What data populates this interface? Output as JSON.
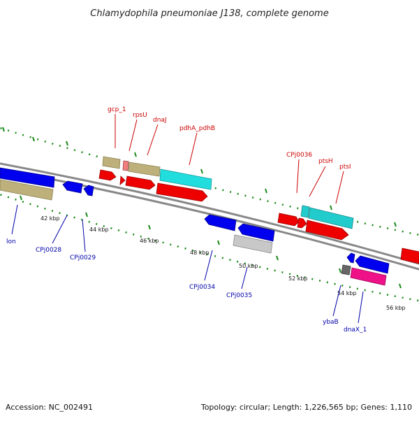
{
  "title": "Chlamydophila pneumoniae J138, complete genome",
  "footer": {
    "accession": "Accession: NC_002491",
    "summary": "Topology: circular; Length: 1,226,565 bp; Genes: 1,110"
  },
  "colors": {
    "backbone": "#888888",
    "tick": "#1a8a1a",
    "forward_label": "#cc0000",
    "reverse_label": "#0000aa"
  },
  "axis": {
    "tick_labels": [
      "42 kbp",
      "44 kbp",
      "46 kbp",
      "48 kbp",
      "50 kbp",
      "52 kbp",
      "54 kbp",
      "56 kbp"
    ]
  },
  "genes": [
    {
      "label": "lon",
      "strand": "reverse",
      "color": "#0000ee",
      "arrow_color": "#bdb07a"
    },
    {
      "label": "CPj0028",
      "strand": "reverse",
      "color": "#0000ee"
    },
    {
      "label": "CPj0029",
      "strand": "reverse",
      "color": "#0000ee"
    },
    {
      "label": "gcp_1",
      "strand": "forward",
      "color": "#bdb07a"
    },
    {
      "label": "rpsU",
      "strand": "forward",
      "color": "#f08080"
    },
    {
      "label": "dnaJ",
      "strand": "forward",
      "color": "#bdb07a"
    },
    {
      "label": "pdhA_pdhB",
      "strand": "forward",
      "color": "#22dddd"
    },
    {
      "label": "CPj0034",
      "strand": "reverse",
      "color": "#0000ee"
    },
    {
      "label": "CPj0035",
      "strand": "reverse",
      "color": "#c8c8c8"
    },
    {
      "label": "CPj0036",
      "strand": "forward",
      "color": "#ee0000"
    },
    {
      "label": "ptsH",
      "strand": "forward",
      "color": "#22cccc"
    },
    {
      "label": "ptsI",
      "strand": "forward",
      "color": "#ee0000"
    },
    {
      "label": "ybaB",
      "strand": "reverse",
      "color": "#666666"
    },
    {
      "label": "dnaX_1",
      "strand": "reverse",
      "color": "#ee1188"
    }
  ]
}
